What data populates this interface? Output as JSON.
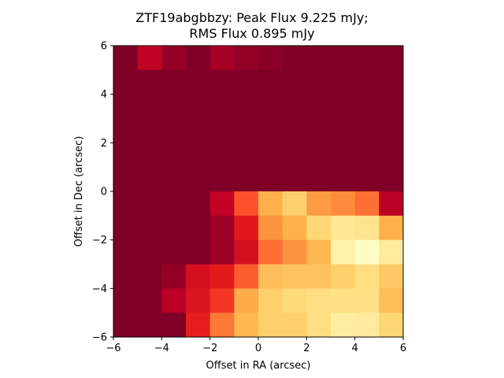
{
  "chart_data": {
    "type": "heatmap",
    "title_line1": "ZTF19abgbbzy: Peak Flux 9.225 mJy;",
    "title_line2": "RMS Flux 0.895 mJy",
    "xlabel": "Offset in RA (arcsec)",
    "ylabel": "Offset in Dec (arcsec)",
    "xlim": [
      -6,
      6
    ],
    "ylim": [
      -6,
      6
    ],
    "xticks": [
      -6,
      -4,
      -2,
      0,
      2,
      4,
      6
    ],
    "yticks": [
      -6,
      -4,
      -2,
      0,
      2,
      4,
      6
    ],
    "xtick_labels": [
      "−6",
      "−4",
      "−2",
      "0",
      "2",
      "4",
      "6"
    ],
    "ytick_labels": [
      "−6",
      "−4",
      "−2",
      "0",
      "2",
      "4",
      "6"
    ],
    "colormap": "YlOrRd",
    "grid": false,
    "cell_size": 1,
    "row_order": "top-to-bottom",
    "values": [
      [
        0.0,
        0.14,
        0.04,
        0.0,
        0.08,
        0.04,
        0.02,
        0.0,
        0.0,
        0.0,
        0.0,
        0.0
      ],
      [
        0.0,
        0.0,
        0.0,
        0.0,
        0.0,
        0.0,
        0.0,
        0.0,
        0.0,
        0.0,
        0.0,
        0.0
      ],
      [
        0.0,
        0.0,
        0.0,
        0.0,
        0.0,
        0.0,
        0.0,
        0.0,
        0.0,
        0.0,
        0.0,
        0.0
      ],
      [
        0.0,
        0.0,
        0.0,
        0.0,
        0.0,
        0.0,
        0.0,
        0.0,
        0.0,
        0.0,
        0.0,
        0.0
      ],
      [
        0.0,
        0.0,
        0.0,
        0.0,
        0.0,
        0.0,
        0.0,
        0.0,
        0.0,
        0.0,
        0.0,
        0.0
      ],
      [
        0.0,
        0.0,
        0.0,
        0.0,
        0.0,
        0.0,
        0.0,
        0.0,
        0.0,
        0.0,
        0.0,
        0.0
      ],
      [
        0.0,
        0.0,
        0.0,
        0.0,
        0.14,
        0.38,
        0.62,
        0.72,
        0.55,
        0.5,
        0.44,
        0.12
      ],
      [
        0.0,
        0.0,
        0.0,
        0.0,
        0.06,
        0.24,
        0.52,
        0.62,
        0.74,
        0.84,
        0.82,
        0.62
      ],
      [
        0.0,
        0.0,
        0.0,
        0.0,
        0.06,
        0.2,
        0.44,
        0.52,
        0.64,
        0.9,
        0.98,
        0.86
      ],
      [
        0.0,
        0.0,
        0.04,
        0.2,
        0.25,
        0.4,
        0.66,
        0.68,
        0.68,
        0.72,
        0.78,
        0.7
      ],
      [
        0.0,
        0.0,
        0.12,
        0.22,
        0.32,
        0.6,
        0.72,
        0.76,
        0.78,
        0.8,
        0.8,
        0.66
      ],
      [
        0.0,
        0.0,
        0.0,
        0.26,
        0.46,
        0.64,
        0.72,
        0.72,
        0.78,
        0.88,
        0.86,
        0.74
      ]
    ]
  }
}
